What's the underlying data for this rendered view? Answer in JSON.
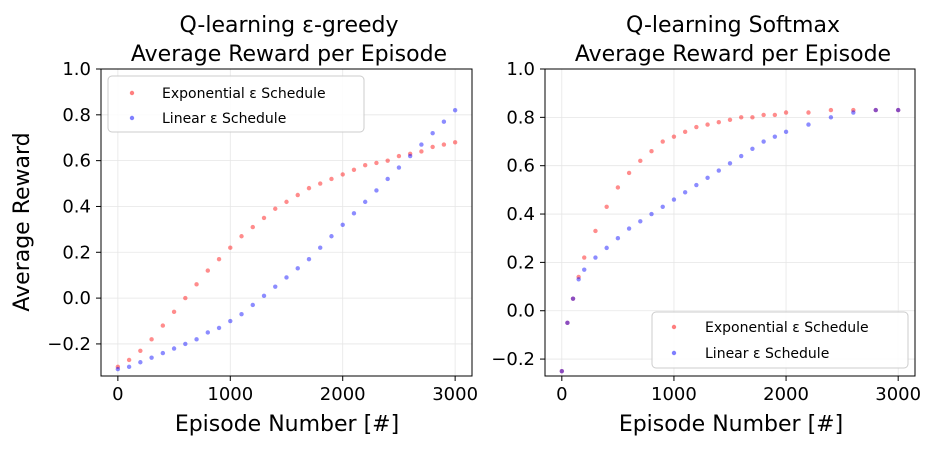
{
  "chart_data": [
    {
      "type": "scatter",
      "title_lines": [
        "Q-learning ε-greedy",
        "Average Reward per Episode"
      ],
      "xlabel": "Episode Number [#]",
      "ylabel": "Average Reward",
      "xlim": [
        -150,
        3150
      ],
      "ylim": [
        -0.34,
        1.0
      ],
      "xticks": [
        "0",
        "1000",
        "2000",
        "3000"
      ],
      "xtick_values": [
        0,
        1000,
        2000,
        3000
      ],
      "yticks": [
        "−0.2",
        "0.0",
        "0.2",
        "0.4",
        "0.6",
        "0.8",
        "1.0"
      ],
      "ytick_values": [
        -0.2,
        0.0,
        0.2,
        0.4,
        0.6,
        0.8,
        1.0
      ],
      "grid": true,
      "legend_position": "upper-left",
      "series": [
        {
          "name": "Exponential ε Schedule",
          "color": "#ff0000",
          "x": [
            0,
            100,
            200,
            300,
            400,
            500,
            600,
            700,
            800,
            900,
            1000,
            1100,
            1200,
            1300,
            1400,
            1500,
            1600,
            1700,
            1800,
            1900,
            2000,
            2100,
            2200,
            2300,
            2400,
            2500,
            2600,
            2700,
            2800,
            2900,
            3000
          ],
          "y": [
            -0.3,
            -0.27,
            -0.23,
            -0.18,
            -0.12,
            -0.06,
            0.0,
            0.06,
            0.12,
            0.17,
            0.22,
            0.27,
            0.31,
            0.35,
            0.39,
            0.42,
            0.45,
            0.48,
            0.5,
            0.52,
            0.54,
            0.56,
            0.58,
            0.59,
            0.6,
            0.62,
            0.63,
            0.64,
            0.66,
            0.67,
            0.68
          ]
        },
        {
          "name": "Linear ε Schedule",
          "color": "#0000ff",
          "x": [
            0,
            100,
            200,
            300,
            400,
            500,
            600,
            700,
            800,
            900,
            1000,
            1100,
            1200,
            1300,
            1400,
            1500,
            1600,
            1700,
            1800,
            1900,
            2000,
            2100,
            2200,
            2300,
            2400,
            2500,
            2600,
            2700,
            2800,
            2900,
            3000
          ],
          "y": [
            -0.31,
            -0.3,
            -0.28,
            -0.26,
            -0.24,
            -0.22,
            -0.2,
            -0.18,
            -0.15,
            -0.13,
            -0.1,
            -0.07,
            -0.03,
            0.01,
            0.05,
            0.09,
            0.13,
            0.17,
            0.22,
            0.27,
            0.32,
            0.37,
            0.42,
            0.47,
            0.52,
            0.57,
            0.62,
            0.67,
            0.72,
            0.77,
            0.82
          ]
        }
      ]
    },
    {
      "type": "scatter",
      "title_lines": [
        "Q-learning Softmax",
        "Average Reward per Episode"
      ],
      "xlabel": "Episode Number [#]",
      "ylabel": "",
      "xlim": [
        -150,
        3150
      ],
      "ylim": [
        -0.27,
        1.0
      ],
      "xticks": [
        "0",
        "1000",
        "2000",
        "3000"
      ],
      "xtick_values": [
        0,
        1000,
        2000,
        3000
      ],
      "yticks": [
        "−0.2",
        "0.0",
        "0.2",
        "0.4",
        "0.6",
        "0.8",
        "1.0"
      ],
      "ytick_values": [
        -0.2,
        0.0,
        0.2,
        0.4,
        0.6,
        0.8,
        1.0
      ],
      "grid": true,
      "legend_position": "lower-right",
      "series": [
        {
          "name": "Exponential ε Schedule",
          "color": "#ff0000",
          "x": [
            0,
            50,
            100,
            150,
            200,
            300,
            400,
            500,
            600,
            700,
            800,
            900,
            1000,
            1100,
            1200,
            1300,
            1400,
            1500,
            1600,
            1700,
            1800,
            1900,
            2000,
            2200,
            2400,
            2600,
            2800,
            3000
          ],
          "y": [
            -0.25,
            -0.05,
            0.05,
            0.14,
            0.22,
            0.33,
            0.43,
            0.51,
            0.57,
            0.62,
            0.66,
            0.7,
            0.72,
            0.74,
            0.76,
            0.77,
            0.78,
            0.79,
            0.8,
            0.8,
            0.81,
            0.81,
            0.82,
            0.82,
            0.83,
            0.83,
            0.83,
            0.83
          ]
        },
        {
          "name": "Linear ε Schedule",
          "color": "#0000ff",
          "x": [
            0,
            50,
            100,
            150,
            200,
            300,
            400,
            500,
            600,
            700,
            800,
            900,
            1000,
            1100,
            1200,
            1300,
            1400,
            1500,
            1600,
            1700,
            1800,
            1900,
            2000,
            2200,
            2400,
            2600,
            2800,
            3000
          ],
          "y": [
            -0.25,
            -0.05,
            0.05,
            0.13,
            0.17,
            0.22,
            0.26,
            0.3,
            0.34,
            0.37,
            0.4,
            0.43,
            0.46,
            0.49,
            0.52,
            0.55,
            0.58,
            0.61,
            0.64,
            0.67,
            0.7,
            0.72,
            0.74,
            0.77,
            0.8,
            0.82,
            0.83,
            0.83
          ]
        }
      ]
    }
  ]
}
